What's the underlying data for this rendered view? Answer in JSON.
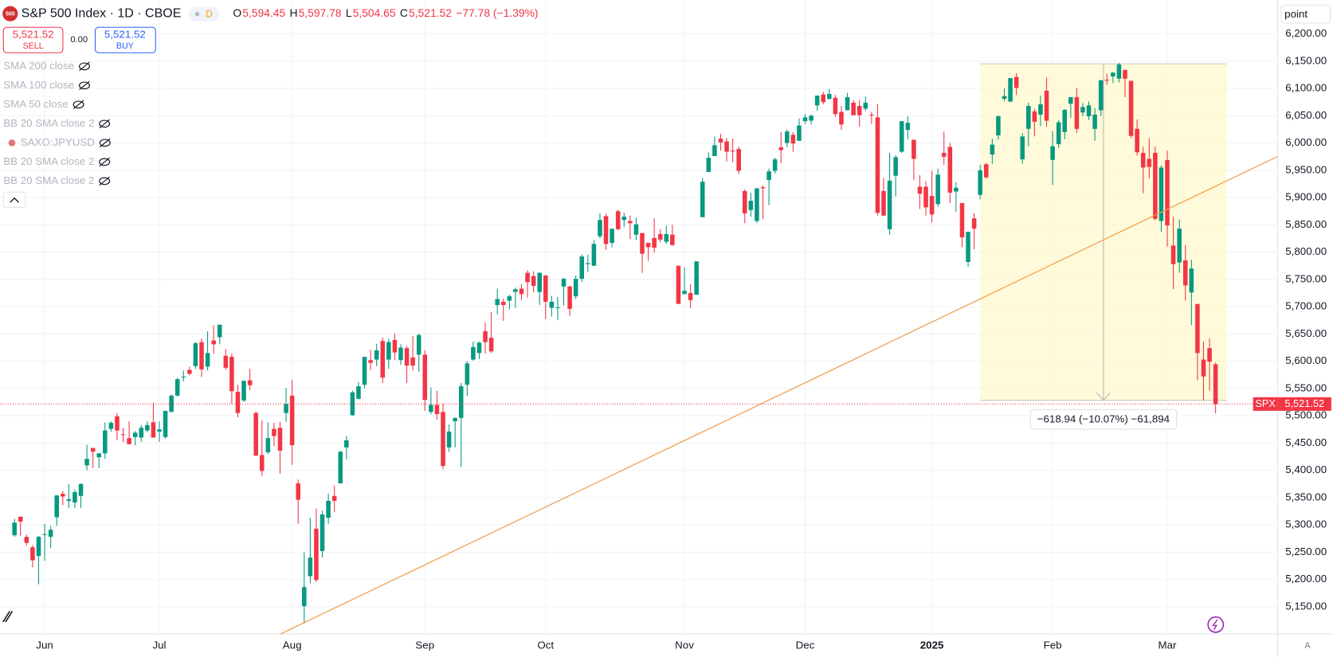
{
  "header": {
    "logo": "500",
    "title": "S&P 500 Index · 1D · CBOE",
    "badge": "D",
    "ohlc": [
      {
        "label": "O",
        "value": "5,594.45"
      },
      {
        "label": "H",
        "value": "5,597.78"
      },
      {
        "label": "L",
        "value": "5,504.65"
      },
      {
        "label": "C",
        "value": "5,521.52"
      }
    ],
    "change": "−77.78 (−1.39%)"
  },
  "trade": {
    "sell_price": "5,521.52",
    "sell": "SELL",
    "spread": "0.00",
    "buy_price": "5,521.52",
    "buy": "BUY"
  },
  "indicators": [
    "SMA 200 close",
    "SMA 100 close",
    "SMA 50 close",
    "BB 20 SMA close 2",
    "SAXO:JPYUSD",
    "BB 20 SMA close 2",
    "BB 20 SMA close 2"
  ],
  "scale_mode": "point",
  "auto_label": "A",
  "price_tag": {
    "symbol": "SPX",
    "value": "5,521.52"
  },
  "measure": "−618.94 (−10.07%) −61,894",
  "chart_data": {
    "type": "candlestick",
    "up_color": "#089981",
    "down_color": "#f23645",
    "grid": true,
    "xlim": [
      -2.4,
      209.3
    ],
    "ylim": [
      5100,
      6262
    ],
    "xticks": [
      {
        "value": 5,
        "label": "Jun"
      },
      {
        "value": 24,
        "label": "Jul"
      },
      {
        "value": 46,
        "label": "Aug"
      },
      {
        "value": 68,
        "label": "Sep"
      },
      {
        "value": 88,
        "label": "Oct"
      },
      {
        "value": 111,
        "label": "Nov"
      },
      {
        "value": 131,
        "label": "Dec"
      },
      {
        "value": 152,
        "label": "2025"
      },
      {
        "value": 172,
        "label": "Feb"
      },
      {
        "value": 191,
        "label": "Mar"
      }
    ],
    "yticks": [
      {
        "value": 5150,
        "label": "5,150.00"
      },
      {
        "value": 5200,
        "label": "5,200.00"
      },
      {
        "value": 5250,
        "label": "5,250.00"
      },
      {
        "value": 5300,
        "label": "5,300.00"
      },
      {
        "value": 5350,
        "label": "5,350.00"
      },
      {
        "value": 5400,
        "label": "5,400.00"
      },
      {
        "value": 5450,
        "label": "5,450.00"
      },
      {
        "value": 5500,
        "label": "5,500.00"
      },
      {
        "value": 5550,
        "label": "5,550.00"
      },
      {
        "value": 5600,
        "label": "5,600.00"
      },
      {
        "value": 5650,
        "label": "5,650.00"
      },
      {
        "value": 5700,
        "label": "5,700.00"
      },
      {
        "value": 5750,
        "label": "5,750.00"
      },
      {
        "value": 5800,
        "label": "5,800.00"
      },
      {
        "value": 5850,
        "label": "5,850.00"
      },
      {
        "value": 5900,
        "label": "5,900.00"
      },
      {
        "value": 5950,
        "label": "5,950.00"
      },
      {
        "value": 6000,
        "label": "6,000.00"
      },
      {
        "value": 6050,
        "label": "6,050.00"
      },
      {
        "value": 6100,
        "label": "6,100.00"
      },
      {
        "value": 6150,
        "label": "6,150.00"
      },
      {
        "value": 6200,
        "label": "6,200.00"
      }
    ],
    "candles": [
      [
        5281,
        5311,
        5278,
        5304
      ],
      [
        5315,
        5315,
        5280,
        5306
      ],
      [
        5278,
        5282,
        5262,
        5267
      ],
      [
        5259,
        5263,
        5222,
        5235
      ],
      [
        5243,
        5280,
        5191,
        5278
      ],
      [
        5283,
        5302,
        5234,
        5283
      ],
      [
        5278,
        5298,
        5257,
        5291
      ],
      [
        5314,
        5354,
        5298,
        5354
      ],
      [
        5357,
        5362,
        5336,
        5352
      ],
      [
        5344,
        5375,
        5331,
        5347
      ],
      [
        5341,
        5365,
        5331,
        5360
      ],
      [
        5353,
        5376,
        5331,
        5375
      ],
      [
        5409,
        5447,
        5400,
        5421
      ],
      [
        5441,
        5441,
        5404,
        5434
      ],
      [
        5424,
        5432,
        5404,
        5431
      ],
      [
        5431,
        5488,
        5421,
        5473
      ],
      [
        5476,
        5490,
        5471,
        5487
      ],
      [
        5499,
        5505,
        5455,
        5473
      ],
      [
        5466,
        5478,
        5452,
        5465
      ],
      [
        5459,
        5490,
        5447,
        5448
      ],
      [
        5461,
        5472,
        5446,
        5469
      ],
      [
        5460,
        5483,
        5452,
        5478
      ],
      [
        5473,
        5490,
        5470,
        5483
      ],
      [
        5488,
        5524,
        5460,
        5460
      ],
      [
        5471,
        5490,
        5452,
        5475
      ],
      [
        5461,
        5509,
        5458,
        5509
      ],
      [
        5507,
        5539,
        5507,
        5537
      ],
      [
        5537,
        5570,
        5535,
        5567
      ],
      [
        5572,
        5583,
        5563,
        5572
      ],
      [
        5584,
        5590,
        5574,
        5577
      ],
      [
        5591,
        5635,
        5586,
        5633
      ],
      [
        5635,
        5642,
        5571,
        5585
      ],
      [
        5590,
        5655,
        5583,
        5615
      ],
      [
        5638,
        5666,
        5614,
        5631
      ],
      [
        5644,
        5667,
        5631,
        5667
      ],
      [
        5610,
        5622,
        5584,
        5588
      ],
      [
        5608,
        5614,
        5522,
        5545
      ],
      [
        5544,
        5557,
        5497,
        5505
      ],
      [
        5528,
        5565,
        5525,
        5564
      ],
      [
        5565,
        5586,
        5547,
        5556
      ],
      [
        5505,
        5508,
        5426,
        5427
      ],
      [
        5428,
        5491,
        5390,
        5399
      ],
      [
        5433,
        5488,
        5430,
        5459
      ],
      [
        5476,
        5487,
        5444,
        5463
      ],
      [
        5478,
        5489,
        5394,
        5436
      ],
      [
        5505,
        5551,
        5489,
        5522
      ],
      [
        5537,
        5566,
        5410,
        5446
      ],
      [
        5376,
        5383,
        5302,
        5346
      ],
      [
        5151,
        5250,
        5119,
        5186
      ],
      [
        5206,
        5313,
        5193,
        5240
      ],
      [
        5293,
        5330,
        5195,
        5199
      ],
      [
        5252,
        5326,
        5240,
        5319
      ],
      [
        5313,
        5357,
        5302,
        5344
      ],
      [
        5353,
        5372,
        5324,
        5344
      ],
      [
        5376,
        5436,
        5376,
        5434
      ],
      [
        5442,
        5463,
        5420,
        5455
      ],
      [
        5501,
        5546,
        5500,
        5543
      ],
      [
        5531,
        5562,
        5530,
        5554
      ],
      [
        5557,
        5608,
        5550,
        5608
      ],
      [
        5602,
        5621,
        5584,
        5597
      ],
      [
        5603,
        5632,
        5591,
        5620
      ],
      [
        5637,
        5643,
        5560,
        5570
      ],
      [
        5603,
        5641,
        5586,
        5635
      ],
      [
        5639,
        5651,
        5602,
        5616
      ],
      [
        5602,
        5631,
        5593,
        5625
      ],
      [
        5624,
        5628,
        5560,
        5592
      ],
      [
        5607,
        5646,
        5583,
        5592
      ],
      [
        5612,
        5651,
        5581,
        5648
      ],
      [
        5612,
        5620,
        5509,
        5529
      ],
      [
        5507,
        5552,
        5503,
        5520
      ],
      [
        5520,
        5546,
        5493,
        5503
      ],
      [
        5507,
        5522,
        5402,
        5408
      ],
      [
        5442,
        5484,
        5434,
        5471
      ],
      [
        5490,
        5497,
        5442,
        5496
      ],
      [
        5496,
        5560,
        5406,
        5554
      ],
      [
        5557,
        5600,
        5536,
        5596
      ],
      [
        5603,
        5636,
        5601,
        5626
      ],
      [
        5615,
        5636,
        5604,
        5634
      ],
      [
        5655,
        5671,
        5614,
        5635
      ],
      [
        5643,
        5690,
        5615,
        5618
      ],
      [
        5703,
        5733,
        5686,
        5714
      ],
      [
        5709,
        5715,
        5674,
        5703
      ],
      [
        5711,
        5722,
        5695,
        5719
      ],
      [
        5727,
        5735,
        5698,
        5732
      ],
      [
        5733,
        5741,
        5712,
        5723
      ],
      [
        5762,
        5767,
        5717,
        5745
      ],
      [
        5756,
        5765,
        5726,
        5738
      ],
      [
        5727,
        5763,
        5703,
        5762
      ],
      [
        5757,
        5758,
        5677,
        5709
      ],
      [
        5698,
        5720,
        5682,
        5709
      ],
      [
        5698,
        5718,
        5675,
        5699
      ],
      [
        5737,
        5753,
        5702,
        5751
      ],
      [
        5737,
        5739,
        5683,
        5696
      ],
      [
        5719,
        5757,
        5714,
        5751
      ],
      [
        5751,
        5796,
        5745,
        5792
      ],
      [
        5778,
        5795,
        5764,
        5780
      ],
      [
        5775,
        5822,
        5775,
        5815
      ],
      [
        5829,
        5871,
        5825,
        5859
      ],
      [
        5866,
        5870,
        5804,
        5815
      ],
      [
        5817,
        5843,
        5809,
        5843
      ],
      [
        5875,
        5878,
        5840,
        5842
      ],
      [
        5859,
        5872,
        5846,
        5865
      ],
      [
        5857,
        5867,
        5824,
        5853
      ],
      [
        5832,
        5863,
        5822,
        5851
      ],
      [
        5835,
        5835,
        5762,
        5797
      ],
      [
        5817,
        5817,
        5784,
        5809
      ],
      [
        5826,
        5862,
        5799,
        5808
      ],
      [
        5833,
        5842,
        5818,
        5823
      ],
      [
        5819,
        5848,
        5815,
        5833
      ],
      [
        5832,
        5850,
        5811,
        5813
      ],
      [
        5775,
        5775,
        5705,
        5705
      ],
      [
        5723,
        5772,
        5723,
        5729
      ],
      [
        5725,
        5741,
        5697,
        5712
      ],
      [
        5722,
        5783,
        5722,
        5783
      ],
      [
        5864,
        5936,
        5864,
        5929
      ],
      [
        5947,
        5983,
        5947,
        5973
      ],
      [
        5976,
        6012,
        5976,
        5996
      ],
      [
        6008,
        6017,
        5986,
        6001
      ],
      [
        6003,
        6009,
        5966,
        5984
      ],
      [
        5986,
        6008,
        5965,
        5985
      ],
      [
        5989,
        5993,
        5943,
        5949
      ],
      [
        5912,
        5915,
        5853,
        5871
      ],
      [
        5877,
        5909,
        5865,
        5894
      ],
      [
        5857,
        5917,
        5853,
        5917
      ],
      [
        5919,
        5922,
        5860,
        5917
      ],
      [
        5932,
        5953,
        5886,
        5948
      ],
      [
        5949,
        5973,
        5944,
        5970
      ],
      [
        5992,
        6020,
        5963,
        5987
      ],
      [
        6000,
        6025,
        5992,
        6021
      ],
      [
        6015,
        6020,
        5984,
        5999
      ],
      [
        6004,
        6045,
        6004,
        6032
      ],
      [
        6040,
        6053,
        6035,
        6047
      ],
      [
        6041,
        6052,
        6034,
        6050
      ],
      [
        6069,
        6087,
        6059,
        6087
      ],
      [
        6089,
        6094,
        6071,
        6075
      ],
      [
        6081,
        6099,
        6079,
        6090
      ],
      [
        6083,
        6088,
        6048,
        6053
      ],
      [
        6057,
        6068,
        6024,
        6034
      ],
      [
        6060,
        6092,
        6060,
        6084
      ],
      [
        6074,
        6079,
        6051,
        6051
      ],
      [
        6068,
        6079,
        6030,
        6051
      ],
      [
        6063,
        6085,
        6059,
        6074
      ],
      [
        6052,
        6057,
        6035,
        6051
      ],
      [
        6047,
        6071,
        5867,
        5872
      ],
      [
        5912,
        5936,
        5866,
        5867
      ],
      [
        5842,
        5982,
        5832,
        5931
      ],
      [
        5940,
        5978,
        5902,
        5974
      ],
      [
        5984,
        6040,
        5982,
        6040
      ],
      [
        6024,
        6049,
        6007,
        6037
      ],
      [
        6006,
        6006,
        5932,
        5971
      ],
      [
        5920,
        5941,
        5879,
        5907
      ],
      [
        5920,
        5930,
        5867,
        5882
      ],
      [
        5903,
        5949,
        5854,
        5869
      ],
      [
        5888,
        5953,
        5883,
        5942
      ],
      [
        5982,
        6021,
        5960,
        5975
      ],
      [
        5993,
        6000,
        5890,
        5909
      ],
      [
        5911,
        5928,
        5874,
        5918
      ],
      [
        5890,
        5890,
        5809,
        5827
      ],
      [
        5782,
        5838,
        5773,
        5837
      ],
      [
        5862,
        5871,
        5805,
        5843
      ],
      [
        5905,
        5960,
        5897,
        5950
      ],
      [
        5961,
        5964,
        5935,
        5937
      ],
      [
        5979,
        6008,
        5962,
        5997
      ],
      [
        6014,
        6051,
        6006,
        6049
      ],
      [
        6081,
        6100,
        6076,
        6086
      ],
      [
        6076,
        6119,
        6075,
        6119
      ],
      [
        6121,
        6128,
        6088,
        6101
      ],
      [
        5970,
        6018,
        5962,
        6012
      ],
      [
        6026,
        6074,
        5994,
        6068
      ],
      [
        6058,
        6063,
        6012,
        6039
      ],
      [
        6052,
        6087,
        6031,
        6071
      ],
      [
        6096,
        6120,
        6030,
        6041
      ],
      [
        5969,
        6022,
        5923,
        5994
      ],
      [
        5998,
        6042,
        5991,
        6038
      ],
      [
        6020,
        6062,
        6007,
        6061
      ],
      [
        6072,
        6084,
        6046,
        6084
      ],
      [
        6084,
        6101,
        6019,
        6026
      ],
      [
        6056,
        6073,
        6049,
        6066
      ],
      [
        6049,
        6076,
        6042,
        6069
      ],
      [
        6026,
        6064,
        6004,
        6052
      ],
      [
        6060,
        6116,
        6049,
        6115
      ],
      [
        6116,
        6127,
        6107,
        6115
      ],
      [
        6122,
        6130,
        6110,
        6129
      ],
      [
        6118,
        6147,
        6111,
        6144
      ],
      [
        6134,
        6134,
        6084,
        6118
      ],
      [
        6114,
        6114,
        6009,
        6013
      ],
      [
        6026,
        6043,
        5977,
        5983
      ],
      [
        5982,
        5993,
        5908,
        5955
      ],
      [
        5971,
        6009,
        5935,
        5956
      ],
      [
        5982,
        5994,
        5858,
        5861
      ],
      [
        5857,
        5959,
        5837,
        5955
      ],
      [
        5969,
        5986,
        5810,
        5849
      ],
      [
        5812,
        5865,
        5732,
        5778
      ],
      [
        5781,
        5860,
        5762,
        5843
      ],
      [
        5785,
        5813,
        5711,
        5739
      ],
      [
        5726,
        5786,
        5666,
        5770
      ],
      [
        5705,
        5705,
        5565,
        5615
      ],
      [
        5603,
        5636,
        5528,
        5572
      ],
      [
        5624,
        5642,
        5546,
        5599
      ],
      [
        5594.45,
        5597.78,
        5504.65,
        5521.52
      ]
    ]
  }
}
